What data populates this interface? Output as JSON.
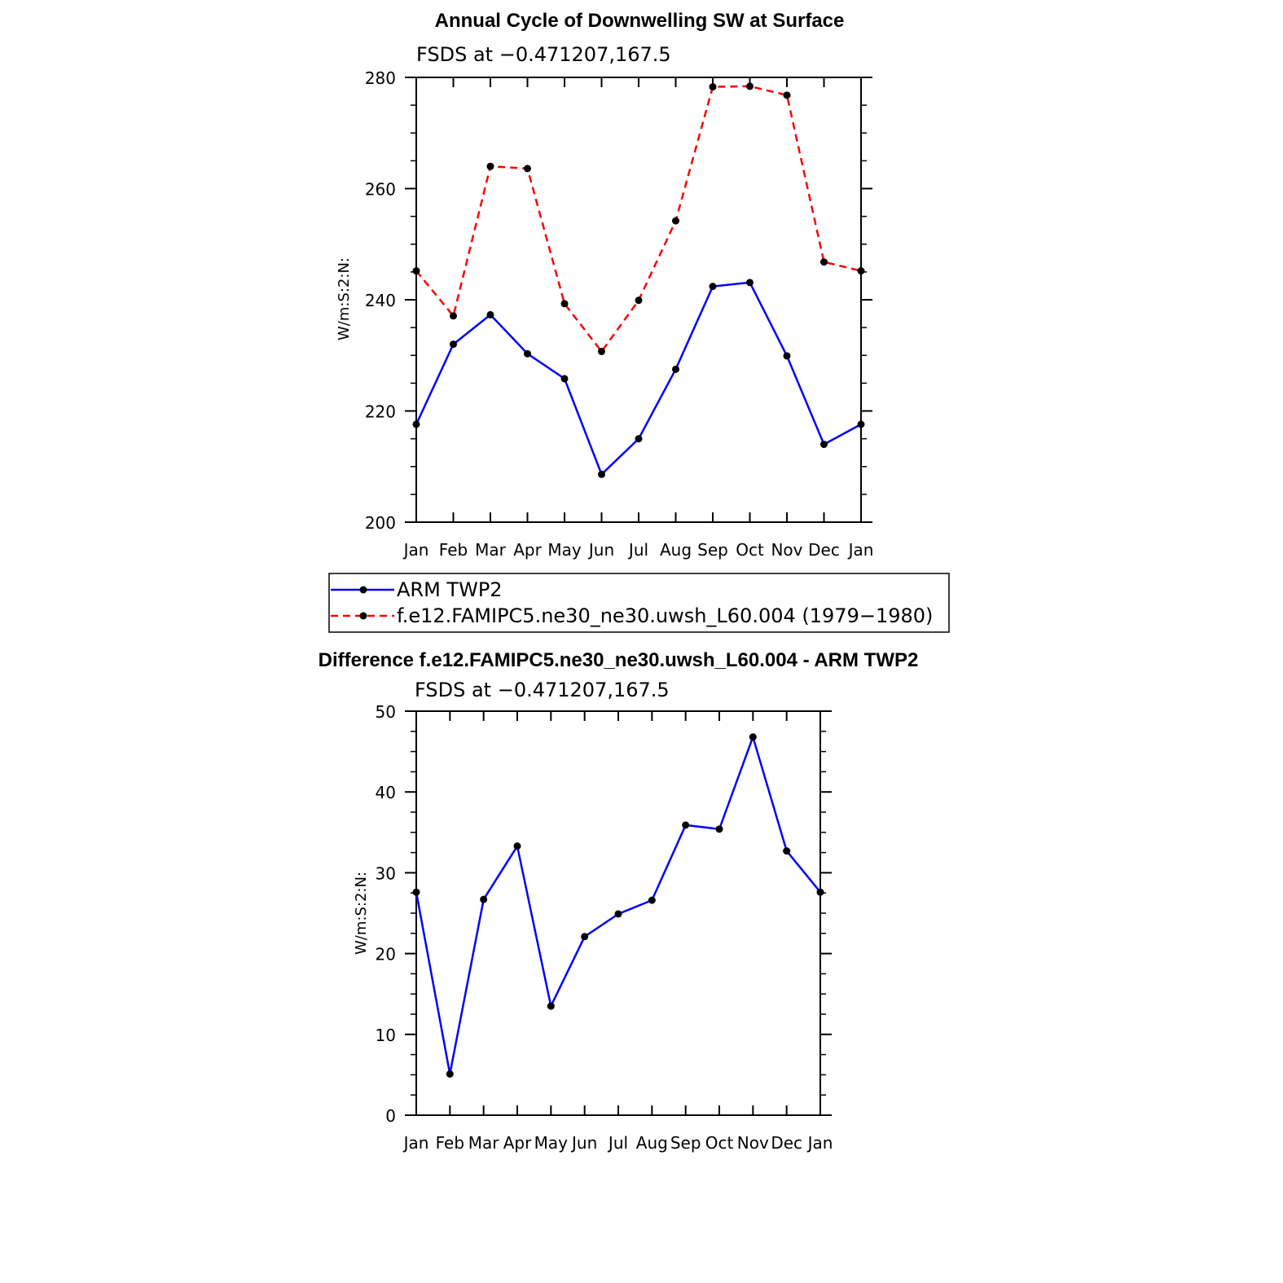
{
  "chart_data": [
    {
      "type": "line",
      "title": "Annual Cycle of Downwelling SW at Surface",
      "subtitle": "FSDS at −0.471207,167.5",
      "ylabel": "W/m:S:2:N:",
      "ylim": [
        200,
        280
      ],
      "yticks": [
        "200",
        "220",
        "240",
        "260",
        "280"
      ],
      "categories": [
        "Jan",
        "Feb",
        "Mar",
        "Apr",
        "May",
        "Jun",
        "Jul",
        "Aug",
        "Sep",
        "Oct",
        "Nov",
        "Dec",
        "Jan"
      ],
      "series": [
        {
          "name": "ARM TWP2",
          "color": "#0000ff",
          "dash": "solid",
          "values": [
            217.6,
            232.0,
            237.3,
            230.3,
            225.8,
            208.6,
            215.0,
            227.5,
            242.4,
            243.1,
            229.9,
            214.0,
            217.6
          ]
        },
        {
          "name": "f.e12.FAMIPC5.ne30_ne30.uwsh_L60.004 (1979−1980)",
          "color": "#ff0000",
          "dash": "dashed",
          "values": [
            245.2,
            237.1,
            264.0,
            263.6,
            239.3,
            230.7,
            239.9,
            254.2,
            278.3,
            278.4,
            276.8,
            246.8,
            245.2
          ]
        }
      ],
      "legend": "below"
    },
    {
      "type": "line",
      "title": "Difference f.e12.FAMIPC5.ne30_ne30.uwsh_L60.004 - ARM TWP2",
      "subtitle": "FSDS at −0.471207,167.5",
      "ylabel": "W/m:S:2:N:",
      "ylim": [
        0,
        50
      ],
      "yticks": [
        "0",
        "10",
        "20",
        "30",
        "40",
        "50"
      ],
      "categories": [
        "Jan",
        "Feb",
        "Mar",
        "Apr",
        "May",
        "Jun",
        "Jul",
        "Aug",
        "Sep",
        "Oct",
        "Nov",
        "Dec",
        "Jan"
      ],
      "series": [
        {
          "color": "#0000ff",
          "dash": "solid",
          "values": [
            27.6,
            5.1,
            26.7,
            33.3,
            13.5,
            22.1,
            24.9,
            26.6,
            35.9,
            35.4,
            46.8,
            32.7,
            27.6
          ]
        }
      ]
    }
  ]
}
